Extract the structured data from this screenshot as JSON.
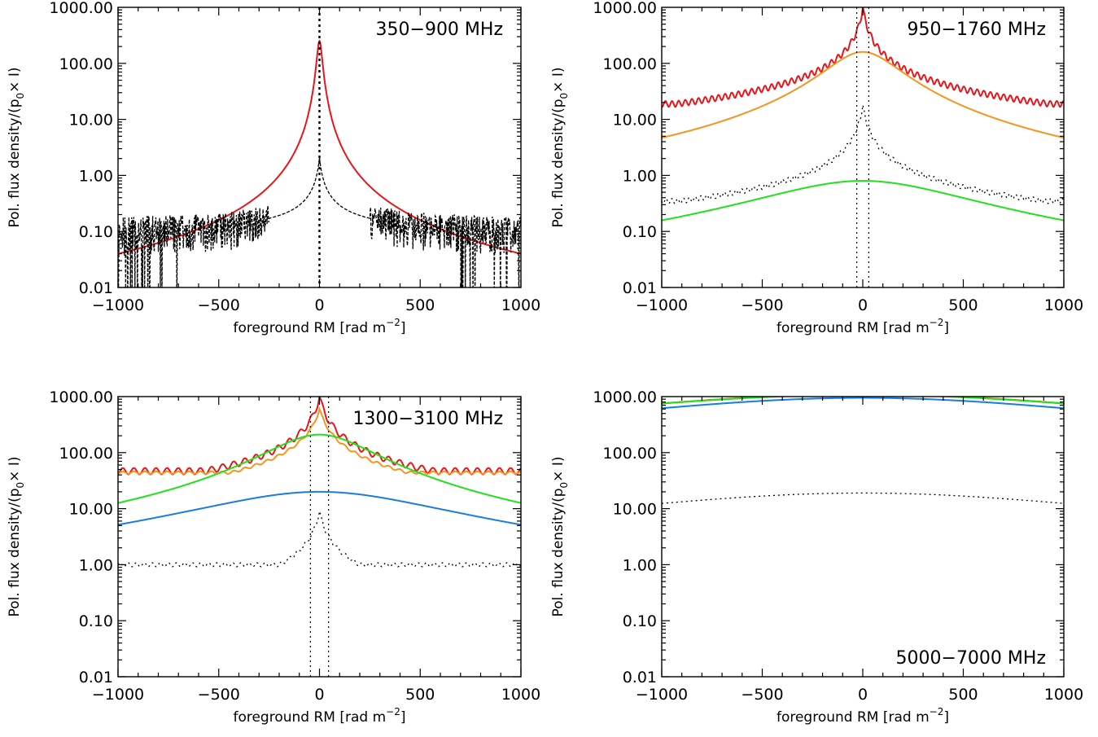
{
  "chart_data": [
    {
      "type": "line",
      "panel": "top-left",
      "annotation": "350−900 MHz",
      "annotation_position": "top-right",
      "xlabel": "foreground RM [rad m",
      "xlabel_sup": "−2",
      "xlabel_end": "]",
      "ylabel": "Pol. flux density/(p",
      "ylabel_sub": "0",
      "ylabel_end": "× I)",
      "xlim": [
        -1000,
        1000
      ],
      "ylim": [
        0.01,
        1000
      ],
      "yscale": "log",
      "xticks": [
        "−1000",
        "−500",
        "0",
        "500",
        "1000"
      ],
      "yticks": [
        "1000.00",
        "100.00",
        "10.00",
        "1.00",
        "0.10",
        "0.01"
      ],
      "vlines": [
        0
      ],
      "series": [
        {
          "color": "#e8151b",
          "style": "solid",
          "model": "lorentz",
          "peak": 250,
          "width": 12,
          "floor": 0,
          "ripple": 0,
          "ripple_period": 40
        },
        {
          "color": "#000000",
          "style": "dashed",
          "model": "noise",
          "peak": 2.0,
          "width": 12,
          "floor": 0,
          "ripple": 0,
          "ripple_period": 40
        }
      ]
    },
    {
      "type": "line",
      "panel": "top-right",
      "annotation": "950−1760 MHz",
      "annotation_position": "top-right",
      "xlabel": "foreground RM [rad m",
      "xlabel_sup": "−2",
      "xlabel_end": "]",
      "ylabel": "Pol. flux density/(p",
      "ylabel_sub": "0",
      "ylabel_end": "× I)",
      "xlim": [
        -1000,
        1000
      ],
      "ylim": [
        0.01,
        1000
      ],
      "yscale": "log",
      "xticks": [
        "−1000",
        "−500",
        "0",
        "500",
        "1000"
      ],
      "yticks": [
        "1000.00",
        "100.00",
        "10.00",
        "1.00",
        "0.10",
        "0.01"
      ],
      "vlines": [
        -30,
        30
      ],
      "series": [
        {
          "color": "#e8151b",
          "style": "solid",
          "model": "cusp",
          "peak": 1000,
          "width": 18,
          "floor": 19,
          "ripple": 0.12,
          "ripple_period": 33
        },
        {
          "color": "#f7941d",
          "style": "solid",
          "model": "lorentz",
          "peak": 160,
          "width": 165,
          "floor": 0,
          "ripple": 0,
          "ripple_period": 40
        },
        {
          "color": "#000000",
          "style": "dotted",
          "model": "cusp",
          "peak": 18,
          "width": 18,
          "floor": 0.35,
          "ripple": 0.1,
          "ripple_period": 29
        },
        {
          "color": "#22e01e",
          "style": "solid",
          "model": "lorentz",
          "peak": 0.8,
          "width": 470,
          "floor": 0,
          "ripple": 0,
          "ripple_period": 40
        }
      ]
    },
    {
      "type": "line",
      "panel": "bottom-left",
      "annotation": "1300−3100 MHz",
      "annotation_position": "top-right",
      "xlabel": "foreground RM [rad m",
      "xlabel_sup": "−2",
      "xlabel_end": "]",
      "ylabel": "Pol. flux density/(p",
      "ylabel_sub": "0",
      "ylabel_end": "× I)",
      "xlim": [
        -1000,
        1000
      ],
      "ylim": [
        0.01,
        1000
      ],
      "yscale": "log",
      "xticks": [
        "−1000",
        "−500",
        "0",
        "500",
        "1000"
      ],
      "yticks": [
        "1000.00",
        "100.00",
        "10.00",
        "1.00",
        "0.10",
        "0.01"
      ],
      "vlines": [
        -45,
        45
      ],
      "series": [
        {
          "color": "#e8151b",
          "style": "solid",
          "model": "cusp",
          "peak": 1000,
          "width": 28,
          "floor": 47,
          "ripple": 0.13,
          "ripple_period": 55
        },
        {
          "color": "#f7941d",
          "style": "solid",
          "model": "cusp",
          "peak": 600,
          "width": 35,
          "floor": 44,
          "ripple": 0.05,
          "ripple_period": 55
        },
        {
          "color": "#22e01e",
          "style": "solid",
          "model": "lorentz",
          "peak": 210,
          "width": 240,
          "floor": 0,
          "ripple": 0,
          "ripple_period": 40
        },
        {
          "color": "#1a7ce0",
          "style": "solid",
          "model": "lorentz",
          "peak": 20,
          "width": 560,
          "floor": 0,
          "ripple": 0,
          "ripple_period": 40
        },
        {
          "color": "#000000",
          "style": "dotted",
          "model": "cusp",
          "peak": 9,
          "width": 25,
          "floor": 1.0,
          "ripple": 0.08,
          "ripple_period": 40
        }
      ]
    },
    {
      "type": "line",
      "panel": "bottom-right",
      "annotation": "5000−7000 MHz",
      "annotation_position": "bottom-right",
      "xlabel": "foreground RM [rad m",
      "xlabel_sup": "−2",
      "xlabel_end": "]",
      "ylabel": "Pol. flux density/(p",
      "ylabel_sub": "0",
      "ylabel_end": "× I)",
      "xlim": [
        -1000,
        1000
      ],
      "ylim": [
        0.01,
        1000
      ],
      "yscale": "log",
      "xticks": [
        "−1000",
        "−500",
        "0",
        "500",
        "1000"
      ],
      "yticks": [
        "1000.00",
        "100.00",
        "10.00",
        "1.00",
        "0.10",
        "0.01"
      ],
      "vlines": [],
      "series": [
        {
          "color": "#e8151b",
          "style": "solid",
          "model": "lorentz",
          "peak": 1100,
          "width": 1400,
          "floor": 0,
          "ripple": 0,
          "ripple_period": 40
        },
        {
          "color": "#f7941d",
          "style": "solid",
          "model": "lorentz",
          "peak": 1090,
          "width": 1420,
          "floor": 0,
          "ripple": 0,
          "ripple_period": 40
        },
        {
          "color": "#22e01e",
          "style": "solid",
          "model": "lorentz",
          "peak": 1080,
          "width": 1440,
          "floor": 0,
          "ripple": 0,
          "ripple_period": 40
        },
        {
          "color": "#1a7ce0",
          "style": "solid",
          "model": "lorentz",
          "peak": 950,
          "width": 1300,
          "floor": 0,
          "ripple": 0,
          "ripple_period": 40
        },
        {
          "color": "#000000",
          "style": "dotted",
          "model": "lorentz",
          "peak": 19,
          "width": 1300,
          "floor": 0,
          "ripple": 0,
          "ripple_period": 40
        }
      ]
    }
  ]
}
